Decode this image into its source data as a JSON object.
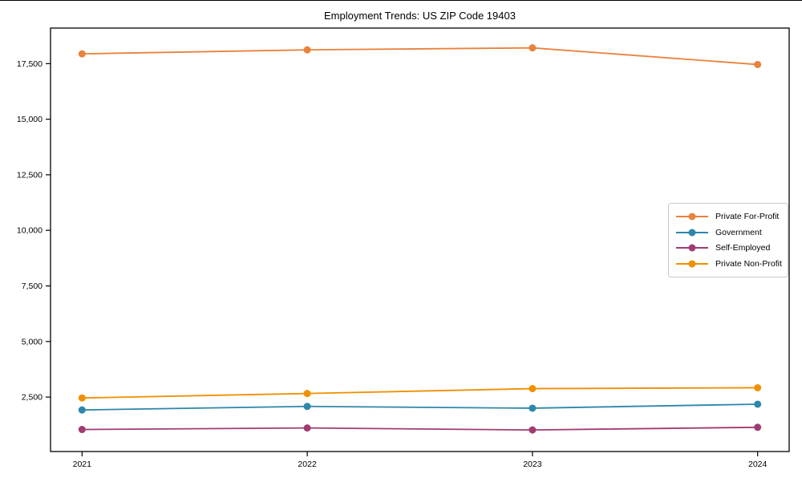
{
  "figure": {
    "title": "Employment Trends: US ZIP Code 19403"
  },
  "chart_data": {
    "type": "line",
    "title": "Employment Trends: US ZIP Code 19403",
    "x": [
      2021,
      2022,
      2023,
      2024
    ],
    "x_tick_labels": [
      "2021",
      "2022",
      "2023",
      "2024"
    ],
    "xlim": [
      2020.86,
      2024.14
    ],
    "ylim": [
      50,
      19100
    ],
    "yticks": [
      2500,
      5000,
      7500,
      10000,
      12500,
      15000,
      17500
    ],
    "ytick_labels": [
      "2,500",
      "5,000",
      "7,500",
      "10,000",
      "12,500",
      "15,000",
      "17,500"
    ],
    "grid": false,
    "marker": "circle",
    "legend_position": "right-inside",
    "series": [
      {
        "name": "Private For-Profit",
        "color": "#E8823D",
        "values": [
          17940,
          18120,
          18210,
          17460
        ]
      },
      {
        "name": "Government",
        "color": "#2E86AB",
        "values": [
          1920,
          2080,
          2000,
          2180
        ]
      },
      {
        "name": "Self-Employed",
        "color": "#A23B72",
        "values": [
          1040,
          1110,
          1020,
          1140
        ]
      },
      {
        "name": "Private Non-Profit",
        "color": "#F18F01",
        "values": [
          2460,
          2660,
          2880,
          2920
        ]
      }
    ]
  }
}
